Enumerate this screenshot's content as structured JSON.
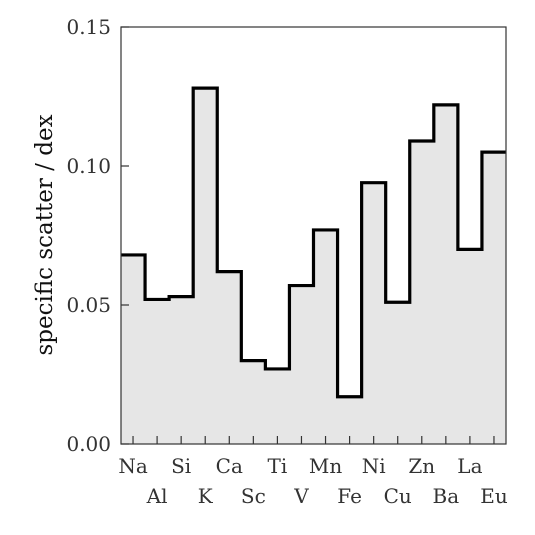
{
  "chart_data": {
    "type": "bar",
    "style": "step-histogram",
    "title": "",
    "xlabel": "",
    "ylabel": "specific scatter / dex",
    "categories": [
      "Na",
      "Al",
      "Si",
      "K",
      "Ca",
      "Sc",
      "Ti",
      "V",
      "Mn",
      "Fe",
      "Ni",
      "Cu",
      "Zn",
      "Ba",
      "La",
      "Eu"
    ],
    "values": [
      0.068,
      0.052,
      0.053,
      0.128,
      0.062,
      0.03,
      0.027,
      0.057,
      0.077,
      0.017,
      0.094,
      0.051,
      0.109,
      0.122,
      0.07,
      0.105
    ],
    "ylim": [
      0,
      0.15
    ],
    "yticks": [
      "0.00",
      "0.05",
      "0.10",
      "0.15"
    ],
    "grid": false,
    "fill_color": "#e6e6e6",
    "line_color": "#000000"
  }
}
